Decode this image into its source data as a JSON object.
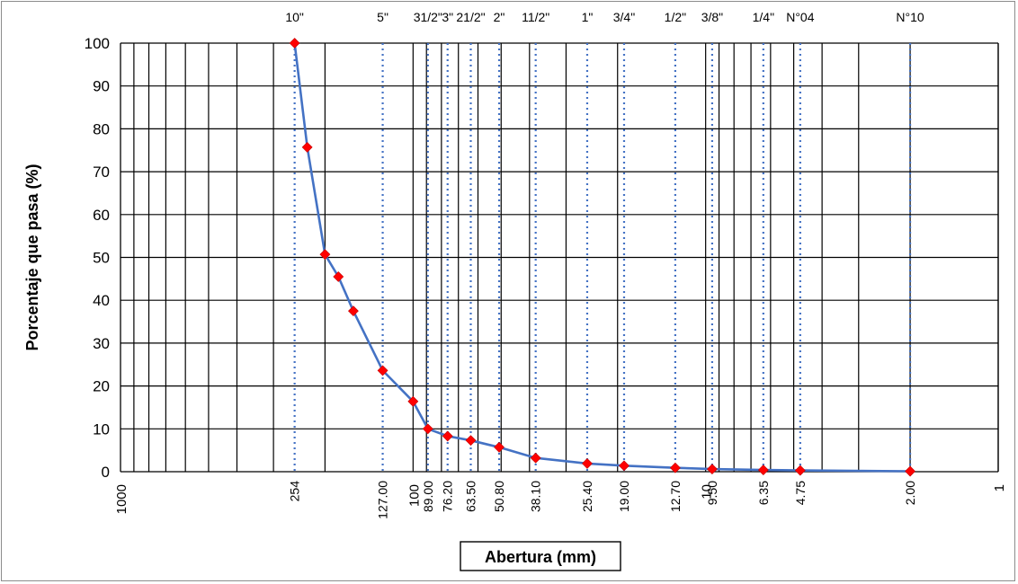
{
  "chart_data": {
    "type": "line",
    "x_scale": "log",
    "x_reversed": true,
    "xlim": [
      1000,
      1
    ],
    "ylim": [
      0,
      100
    ],
    "grid": true,
    "xlabel": "Abertura (mm)",
    "ylabel": "Porcentaje que pasa (%)",
    "y_ticks": [
      0,
      10,
      20,
      30,
      40,
      50,
      60,
      70,
      80,
      90,
      100
    ],
    "x_decade_labels": [
      {
        "x": 1000,
        "label": "1000"
      },
      {
        "x": 100,
        "label": "100"
      },
      {
        "x": 10,
        "label": "10"
      },
      {
        "x": 1,
        "label": "1"
      }
    ],
    "sieves": [
      {
        "x": 254,
        "size_label": "10\"",
        "value_label": "254"
      },
      {
        "x": 127.0,
        "size_label": "5\"",
        "value_label": "127.00"
      },
      {
        "x": 89.0,
        "size_label": "31/2\"",
        "value_label": "89.00"
      },
      {
        "x": 76.2,
        "size_label": "3\"",
        "value_label": "76.20"
      },
      {
        "x": 63.5,
        "size_label": "21/2\"",
        "value_label": "63.50"
      },
      {
        "x": 50.8,
        "size_label": "2\"",
        "value_label": "50.80"
      },
      {
        "x": 38.1,
        "size_label": "11/2\"",
        "value_label": "38.10"
      },
      {
        "x": 25.4,
        "size_label": "1\"",
        "value_label": "25.40"
      },
      {
        "x": 19.0,
        "size_label": "3/4\"",
        "value_label": "19.00"
      },
      {
        "x": 12.7,
        "size_label": "1/2\"",
        "value_label": "12.70"
      },
      {
        "x": 9.5,
        "size_label": "3/8\"",
        "value_label": "9.50"
      },
      {
        "x": 6.35,
        "size_label": "1/4\"",
        "value_label": "6.35"
      },
      {
        "x": 4.75,
        "size_label": "N°04",
        "value_label": "4.75"
      },
      {
        "x": 2.0,
        "size_label": "N°10",
        "value_label": "2.00"
      }
    ],
    "series": [
      {
        "x": [
          254,
          230,
          200,
          180,
          160,
          127,
          100,
          89,
          76.2,
          63.5,
          50.8,
          38.1,
          25.4,
          19.0,
          12.7,
          9.5,
          6.35,
          4.75,
          2.0
        ],
        "y": [
          100,
          75.7,
          50.7,
          45.5,
          37.5,
          23.6,
          16.4,
          10.0,
          8.3,
          7.3,
          5.7,
          3.2,
          1.9,
          1.4,
          0.9,
          0.6,
          0.4,
          0.3,
          0.1
        ]
      }
    ],
    "colors": {
      "line": "#4472c4",
      "marker": "#ff0000",
      "sieve_line": "#4472c4",
      "grid": "#000000"
    }
  }
}
